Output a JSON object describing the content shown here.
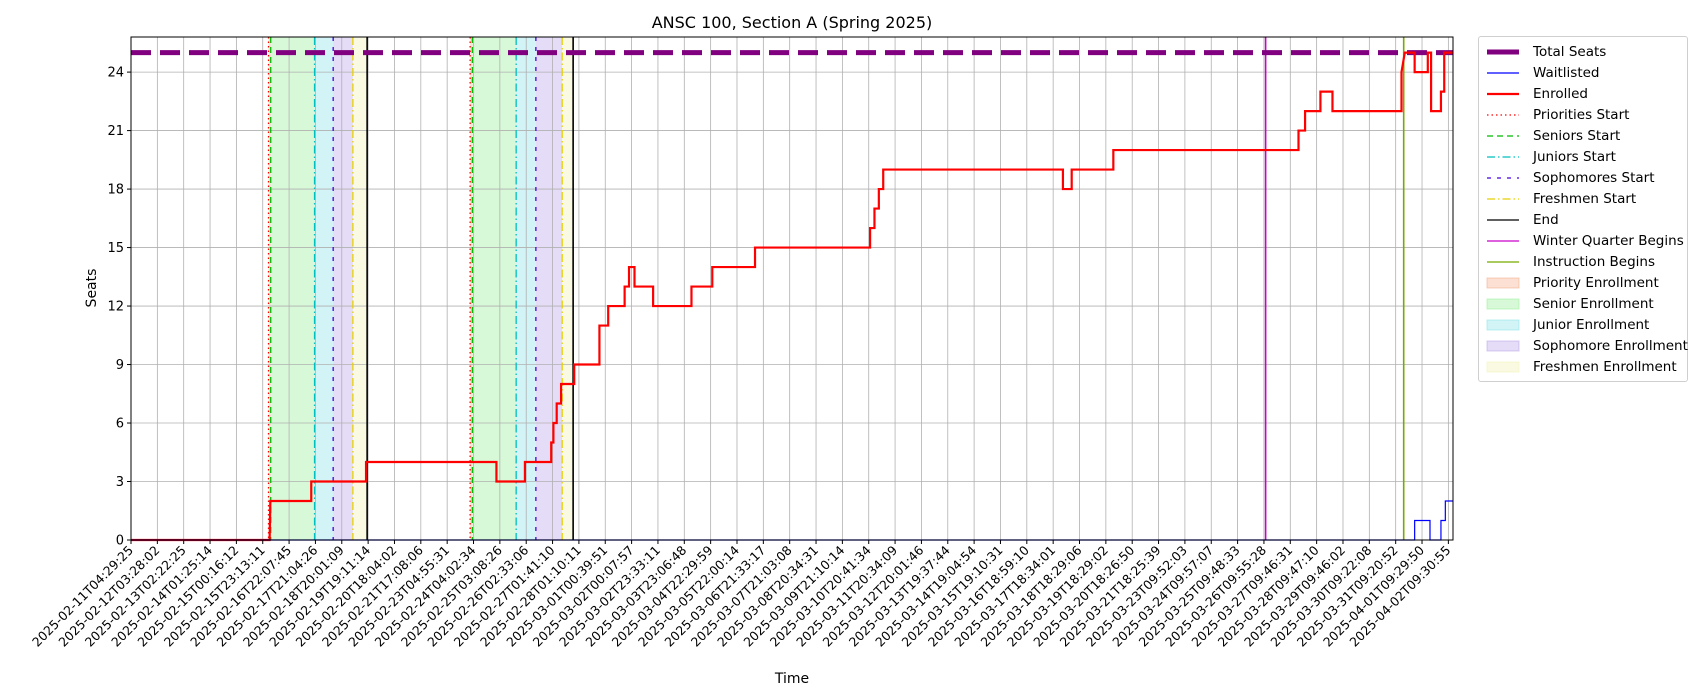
{
  "chart_data": {
    "type": "line",
    "title": "ANSC 100, Section A (Spring 2025)",
    "xlabel": "Time",
    "ylabel": "Seats",
    "grid": true,
    "legend_position": "outside-right",
    "x_start": "2025-02-11T04:29:25",
    "x_end": "2025-04-02T11:00:00",
    "ylim": [
      0,
      25.8
    ],
    "yticks": [
      0,
      3,
      6,
      9,
      12,
      15,
      18,
      21,
      24
    ],
    "xtick_labels": [
      "2025-02-11T04:29:25",
      "2025-02-12T03:28:02",
      "2025-02-13T02:22:25",
      "2025-02-14T01:25:14",
      "2025-02-15T00:16:12",
      "2025-02-15T23:13:11",
      "2025-02-16T22:07:45",
      "2025-02-17T21:04:26",
      "2025-02-18T20:01:09",
      "2025-02-19T19:11:14",
      "2025-02-20T18:04:02",
      "2025-02-21T17:08:06",
      "2025-02-23T04:55:31",
      "2025-02-24T04:02:34",
      "2025-02-25T03:08:26",
      "2025-02-26T02:33:06",
      "2025-02-27T01:41:10",
      "2025-02-28T01:10:11",
      "2025-03-01T00:39:51",
      "2025-03-02T00:07:57",
      "2025-03-02T23:33:11",
      "2025-03-03T23:06:48",
      "2025-03-04T22:29:59",
      "2025-03-05T22:00:14",
      "2025-03-06T21:33:17",
      "2025-03-07T21:03:08",
      "2025-03-08T20:34:31",
      "2025-03-09T21:10:14",
      "2025-03-10T20:41:34",
      "2025-03-11T20:34:09",
      "2025-03-12T20:01:46",
      "2025-03-13T19:37:44",
      "2025-03-14T19:04:54",
      "2025-03-15T19:10:31",
      "2025-03-16T18:59:10",
      "2025-03-17T18:34:01",
      "2025-03-18T18:29:06",
      "2025-03-19T18:29:02",
      "2025-03-20T18:26:50",
      "2025-03-21T18:25:39",
      "2025-03-23T09:52:03",
      "2025-03-24T09:57:07",
      "2025-03-25T09:48:33",
      "2025-03-26T09:55:28",
      "2025-03-27T09:46:31",
      "2025-03-28T09:47:10",
      "2025-03-29T09:46:02",
      "2025-03-30T09:22:08",
      "2025-03-31T09:20:52",
      "2025-04-01T09:29:50",
      "2025-04-02T09:30:55"
    ],
    "total_seats": 25,
    "series": [
      {
        "name": "Enrolled",
        "color": "#ff0000",
        "points": [
          [
            "2025-02-11T04:29:25",
            0
          ],
          [
            "2025-02-16T11:00:00",
            0
          ],
          [
            "2025-02-16T11:20:00",
            1
          ],
          [
            "2025-02-16T11:40:00",
            2
          ],
          [
            "2025-02-18T01:00:00",
            2
          ],
          [
            "2025-02-18T01:00:00",
            3
          ],
          [
            "2025-02-20T03:00:00",
            3
          ],
          [
            "2025-02-20T03:00:00",
            4
          ],
          [
            "2025-02-25T02:00:00",
            4
          ],
          [
            "2025-02-25T02:00:00",
            3
          ],
          [
            "2025-02-26T04:00:00",
            3
          ],
          [
            "2025-02-26T04:00:00",
            4
          ],
          [
            "2025-02-27T04:00:00",
            4
          ],
          [
            "2025-02-27T04:00:00",
            5
          ],
          [
            "2025-02-27T06:00:00",
            5
          ],
          [
            "2025-02-27T06:00:00",
            6
          ],
          [
            "2025-02-27T09:00:00",
            6
          ],
          [
            "2025-02-27T09:00:00",
            7
          ],
          [
            "2025-02-27T13:00:00",
            7
          ],
          [
            "2025-02-27T13:00:00",
            8
          ],
          [
            "2025-02-28T01:00:00",
            8
          ],
          [
            "2025-02-28T01:00:00",
            9
          ],
          [
            "2025-03-01T00:00:00",
            9
          ],
          [
            "2025-03-01T00:00:00",
            11
          ],
          [
            "2025-03-01T08:00:00",
            11
          ],
          [
            "2025-03-01T08:00:00",
            12
          ],
          [
            "2025-03-01T23:00:00",
            12
          ],
          [
            "2025-03-01T23:00:00",
            13
          ],
          [
            "2025-03-02T03:00:00",
            13
          ],
          [
            "2025-03-02T03:00:00",
            14
          ],
          [
            "2025-03-02T08:00:00",
            14
          ],
          [
            "2025-03-02T08:00:00",
            13
          ],
          [
            "2025-03-03T01:00:00",
            13
          ],
          [
            "2025-03-03T01:00:00",
            12
          ],
          [
            "2025-03-04T12:00:00",
            12
          ],
          [
            "2025-03-04T12:00:00",
            13
          ],
          [
            "2025-03-05T07:00:00",
            13
          ],
          [
            "2025-03-05T07:00:00",
            14
          ],
          [
            "2025-03-06T22:00:00",
            14
          ],
          [
            "2025-03-06T22:00:00",
            15
          ],
          [
            "2025-03-11T07:00:00",
            15
          ],
          [
            "2025-03-11T07:00:00",
            16
          ],
          [
            "2025-03-11T11:00:00",
            16
          ],
          [
            "2025-03-11T11:00:00",
            17
          ],
          [
            "2025-03-11T15:00:00",
            17
          ],
          [
            "2025-03-11T15:00:00",
            18
          ],
          [
            "2025-03-11T19:00:00",
            18
          ],
          [
            "2025-03-11T19:00:00",
            19
          ],
          [
            "2025-03-18T15:00:00",
            19
          ],
          [
            "2025-03-18T15:00:00",
            18
          ],
          [
            "2025-03-18T23:00:00",
            18
          ],
          [
            "2025-03-18T23:00:00",
            19
          ],
          [
            "2025-03-20T13:00:00",
            19
          ],
          [
            "2025-03-20T13:00:00",
            20
          ],
          [
            "2025-03-27T14:00:00",
            20
          ],
          [
            "2025-03-27T14:00:00",
            21
          ],
          [
            "2025-03-27T20:00:00",
            21
          ],
          [
            "2025-03-27T20:00:00",
            22
          ],
          [
            "2025-03-28T10:00:00",
            22
          ],
          [
            "2025-03-28T10:00:00",
            23
          ],
          [
            "2025-03-28T21:00:00",
            23
          ],
          [
            "2025-03-28T21:00:00",
            22
          ],
          [
            "2025-03-31T12:00:00",
            22
          ],
          [
            "2025-03-31T12:00:00",
            24
          ],
          [
            "2025-03-31T15:00:00",
            25
          ],
          [
            "2025-04-01T00:00:00",
            25
          ],
          [
            "2025-04-01T00:00:00",
            24
          ],
          [
            "2025-04-01T12:00:00",
            24
          ],
          [
            "2025-04-01T12:00:00",
            25
          ],
          [
            "2025-04-01T15:00:00",
            25
          ],
          [
            "2025-04-01T15:00:00",
            22
          ],
          [
            "2025-04-02T00:00:00",
            22
          ],
          [
            "2025-04-02T00:00:00",
            23
          ],
          [
            "2025-04-02T03:00:00",
            23
          ],
          [
            "2025-04-02T03:00:00",
            25
          ],
          [
            "2025-04-02T11:00:00",
            25
          ]
        ]
      },
      {
        "name": "Waitlisted",
        "color": "#0000ff",
        "points": [
          [
            "2025-02-11T04:29:25",
            0
          ],
          [
            "2025-04-01T00:00:00",
            0
          ],
          [
            "2025-04-01T00:00:00",
            1
          ],
          [
            "2025-04-01T14:00:00",
            1
          ],
          [
            "2025-04-01T14:00:00",
            0
          ],
          [
            "2025-04-02T00:00:00",
            0
          ],
          [
            "2025-04-02T00:00:00",
            1
          ],
          [
            "2025-04-02T04:00:00",
            1
          ],
          [
            "2025-04-02T04:00:00",
            2
          ],
          [
            "2025-04-02T11:00:00",
            2
          ]
        ]
      }
    ],
    "bands": [
      {
        "name": "Priority Enrollment",
        "color": "#f4a582",
        "from": "2025-02-16T10:00:00",
        "to": "2025-02-16T12:00:00"
      },
      {
        "name": "Senior Enrollment",
        "color": "#90ee90",
        "from": "2025-02-16T12:00:00",
        "to": "2025-02-18T04:00:00"
      },
      {
        "name": "Junior Enrollment",
        "color": "#7fe0e8",
        "from": "2025-02-18T04:00:00",
        "to": "2025-02-18T21:00:00"
      },
      {
        "name": "Sophomore Enrollment",
        "color": "#b59be8",
        "from": "2025-02-18T21:00:00",
        "to": "2025-02-19T15:00:00"
      },
      {
        "name": "Freshmen Enrollment",
        "color": "#f2f2b0",
        "from": "2025-02-19T15:00:00",
        "to": "2025-02-20T04:00:00"
      },
      {
        "name": "Priority Enrollment",
        "color": "#f4a582",
        "from": "2025-02-24T02:00:00",
        "to": "2025-02-24T04:00:00"
      },
      {
        "name": "Senior Enrollment",
        "color": "#90ee90",
        "from": "2025-02-24T04:00:00",
        "to": "2025-02-25T20:00:00"
      },
      {
        "name": "Junior Enrollment",
        "color": "#7fe0e8",
        "from": "2025-02-25T20:00:00",
        "to": "2025-02-26T14:00:00"
      },
      {
        "name": "Sophomore Enrollment",
        "color": "#b59be8",
        "from": "2025-02-26T14:00:00",
        "to": "2025-02-27T14:00:00"
      },
      {
        "name": "Freshmen Enrollment",
        "color": "#f2f2b0",
        "from": "2025-02-27T14:00:00",
        "to": "2025-02-28T00:00:00"
      }
    ],
    "markers": [
      {
        "name": "Priorities Start",
        "color": "#ff0000",
        "dash": "1.5,3",
        "at": "2025-02-16T10:00:00"
      },
      {
        "name": "Seniors Start",
        "color": "#00bb00",
        "dash": "6,4",
        "at": "2025-02-16T12:00:00"
      },
      {
        "name": "Juniors Start",
        "color": "#00bfbf",
        "dash": "8,3,1.5,3",
        "at": "2025-02-18T04:00:00"
      },
      {
        "name": "Sophomores Start",
        "color": "#4400dd",
        "dash": "4,6",
        "at": "2025-02-18T21:00:00"
      },
      {
        "name": "Freshmen Start",
        "color": "#e8d000",
        "dash": "8,3,1.5,3",
        "at": "2025-02-19T15:00:00"
      },
      {
        "name": "End",
        "color": "#000000",
        "dash": "",
        "at": "2025-02-20T04:00:00"
      },
      {
        "name": "Priorities Start",
        "color": "#ff0000",
        "dash": "1.5,3",
        "at": "2025-02-24T02:00:00"
      },
      {
        "name": "Seniors Start",
        "color": "#00bb00",
        "dash": "6,4",
        "at": "2025-02-24T04:00:00"
      },
      {
        "name": "Juniors Start",
        "color": "#00bfbf",
        "dash": "8,3,1.5,3",
        "at": "2025-02-25T20:00:00"
      },
      {
        "name": "Sophomores Start",
        "color": "#4400dd",
        "dash": "4,6",
        "at": "2025-02-26T14:00:00"
      },
      {
        "name": "Freshmen Start",
        "color": "#e8d000",
        "dash": "8,3,1.5,3",
        "at": "2025-02-27T14:00:00"
      },
      {
        "name": "End",
        "color": "#000000",
        "dash": "",
        "at": "2025-02-28T00:00:00"
      },
      {
        "name": "Winter Quarter Begins",
        "color": "#cc00cc",
        "dash": "",
        "at": "2025-03-26T08:00:00"
      },
      {
        "name": "Instruction Begins",
        "color": "#77aa00",
        "dash": "",
        "at": "2025-03-31T14:00:00"
      }
    ],
    "legend": [
      {
        "label": "Total Seats",
        "kind": "thick",
        "color": "#800080"
      },
      {
        "label": "Waitlisted",
        "kind": "line",
        "color": "#0000ff"
      },
      {
        "label": "Enrolled",
        "kind": "line2",
        "color": "#ff0000"
      },
      {
        "label": "Priorities Start",
        "kind": "dotted",
        "color": "#ff0000"
      },
      {
        "label": "Seniors Start",
        "kind": "dashed",
        "color": "#00bb00"
      },
      {
        "label": "Juniors Start",
        "kind": "dashdot",
        "color": "#00bfbf"
      },
      {
        "label": "Sophomores Start",
        "kind": "loose",
        "color": "#4400dd"
      },
      {
        "label": "Freshmen Start",
        "kind": "dashdot",
        "color": "#e8d000"
      },
      {
        "label": "End",
        "kind": "line",
        "color": "#000000"
      },
      {
        "label": "Winter Quarter Begins",
        "kind": "line",
        "color": "#cc00cc"
      },
      {
        "label": "Instruction Begins",
        "kind": "line",
        "color": "#77aa00"
      },
      {
        "label": "Priority Enrollment",
        "kind": "patch",
        "color": "#f4a582"
      },
      {
        "label": "Senior Enrollment",
        "kind": "patch",
        "color": "#90ee90"
      },
      {
        "label": "Junior Enrollment",
        "kind": "patch",
        "color": "#7fe0e8"
      },
      {
        "label": "Sophomore Enrollment",
        "kind": "patch",
        "color": "#b59be8"
      },
      {
        "label": "Freshmen Enrollment",
        "kind": "patch",
        "color": "#f2f2b0"
      }
    ]
  }
}
